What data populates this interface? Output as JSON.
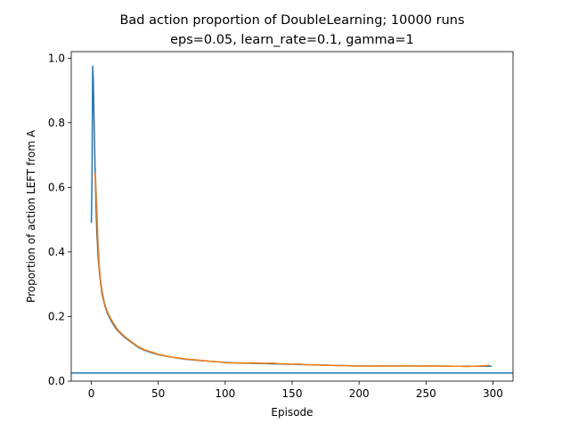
{
  "chart_data": {
    "type": "line",
    "title": "Bad action proportion of DoubleLearning; 10000 runs",
    "subtitle": "eps=0.05, learn_rate=0.1, gamma=1",
    "xlabel": "Episode",
    "ylabel": "Proportion of action LEFT from A",
    "xlim": [
      -15,
      315
    ],
    "ylim": [
      0,
      1.02
    ],
    "x_ticks": [
      "0",
      "50",
      "100",
      "150",
      "200",
      "250",
      "300"
    ],
    "y_ticks": [
      "0.0",
      "0.2",
      "0.4",
      "0.6",
      "0.8",
      "1.0"
    ],
    "grid": false,
    "legend": "none",
    "series": [
      {
        "color": "#1f77b4",
        "points": [
          [
            0,
            0.49
          ],
          [
            0.5,
            0.62
          ],
          [
            1,
            0.975
          ],
          [
            1.5,
            0.93
          ],
          [
            2,
            0.82
          ],
          [
            3,
            0.62
          ],
          [
            4,
            0.47
          ],
          [
            5,
            0.39
          ],
          [
            6,
            0.34
          ],
          [
            7,
            0.3
          ],
          [
            8,
            0.27
          ],
          [
            10,
            0.235
          ],
          [
            12,
            0.21
          ],
          [
            15,
            0.185
          ],
          [
            18,
            0.165
          ],
          [
            20,
            0.155
          ],
          [
            25,
            0.135
          ],
          [
            30,
            0.12
          ],
          [
            35,
            0.105
          ],
          [
            40,
            0.095
          ],
          [
            45,
            0.088
          ],
          [
            50,
            0.082
          ],
          [
            60,
            0.074
          ],
          [
            70,
            0.068
          ],
          [
            80,
            0.064
          ],
          [
            90,
            0.061
          ],
          [
            100,
            0.058
          ],
          [
            110,
            0.056
          ],
          [
            120,
            0.055
          ],
          [
            130,
            0.054
          ],
          [
            140,
            0.053
          ],
          [
            150,
            0.052
          ],
          [
            160,
            0.051
          ],
          [
            170,
            0.05
          ],
          [
            180,
            0.049
          ],
          [
            190,
            0.048
          ],
          [
            200,
            0.047
          ],
          [
            210,
            0.047
          ],
          [
            220,
            0.047
          ],
          [
            230,
            0.047
          ],
          [
            240,
            0.047
          ],
          [
            250,
            0.047
          ],
          [
            260,
            0.047
          ],
          [
            270,
            0.046
          ],
          [
            280,
            0.046
          ],
          [
            290,
            0.046
          ],
          [
            299,
            0.046
          ]
        ]
      },
      {
        "color": "#ff7f0e",
        "points": [
          [
            3,
            0.645
          ],
          [
            4,
            0.55
          ],
          [
            5,
            0.43
          ],
          [
            6,
            0.355
          ],
          [
            7,
            0.31
          ],
          [
            8,
            0.28
          ],
          [
            10,
            0.24
          ],
          [
            12,
            0.215
          ],
          [
            15,
            0.19
          ],
          [
            18,
            0.17
          ],
          [
            20,
            0.158
          ],
          [
            25,
            0.138
          ],
          [
            30,
            0.122
          ],
          [
            35,
            0.107
          ],
          [
            40,
            0.097
          ],
          [
            45,
            0.09
          ],
          [
            50,
            0.083
          ],
          [
            55,
            0.079
          ],
          [
            60,
            0.074
          ],
          [
            65,
            0.072
          ],
          [
            70,
            0.069
          ],
          [
            75,
            0.067
          ],
          [
            80,
            0.065
          ],
          [
            85,
            0.063
          ],
          [
            90,
            0.061
          ],
          [
            95,
            0.06
          ],
          [
            100,
            0.057
          ],
          [
            105,
            0.056
          ],
          [
            110,
            0.057
          ],
          [
            115,
            0.056
          ],
          [
            120,
            0.057
          ],
          [
            125,
            0.056
          ],
          [
            130,
            0.055
          ],
          [
            135,
            0.056
          ],
          [
            140,
            0.054
          ],
          [
            145,
            0.053
          ],
          [
            150,
            0.052
          ],
          [
            155,
            0.053
          ],
          [
            160,
            0.051
          ],
          [
            165,
            0.05
          ],
          [
            170,
            0.05
          ],
          [
            175,
            0.049
          ],
          [
            180,
            0.049
          ],
          [
            185,
            0.048
          ],
          [
            190,
            0.048
          ],
          [
            195,
            0.047
          ],
          [
            200,
            0.046
          ],
          [
            205,
            0.047
          ],
          [
            210,
            0.046
          ],
          [
            215,
            0.048
          ],
          [
            220,
            0.047
          ],
          [
            225,
            0.046
          ],
          [
            230,
            0.047
          ],
          [
            235,
            0.048
          ],
          [
            240,
            0.047
          ],
          [
            245,
            0.046
          ],
          [
            250,
            0.048
          ],
          [
            255,
            0.047
          ],
          [
            260,
            0.046
          ],
          [
            265,
            0.047
          ],
          [
            270,
            0.046
          ],
          [
            275,
            0.046
          ],
          [
            280,
            0.045
          ],
          [
            285,
            0.046
          ],
          [
            290,
            0.047
          ],
          [
            295,
            0.048
          ],
          [
            297,
            0.05
          ]
        ]
      }
    ],
    "hline": {
      "y": 0.025,
      "color": "#1f77b4"
    }
  }
}
